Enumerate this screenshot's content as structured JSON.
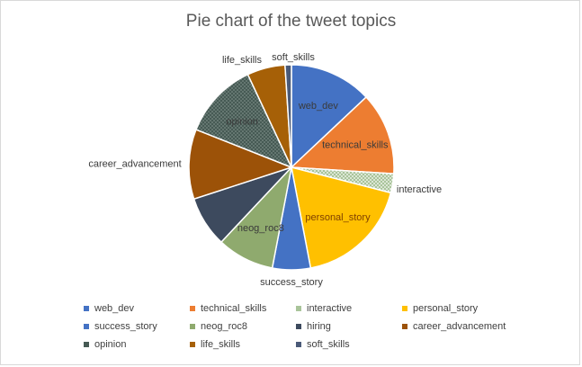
{
  "chart_data": {
    "type": "pie",
    "title": "Pie chart of the tweet topics",
    "slices": [
      {
        "label": "web_dev",
        "value": 13,
        "color": "#4472c4",
        "show_label": true,
        "label_color": "#3a3a3a"
      },
      {
        "label": "technical_skills",
        "value": 13,
        "color": "#ed7d31",
        "show_label": true,
        "label_color": "#3a3a3a"
      },
      {
        "label": "interactive",
        "value": 3,
        "color": "#a9c49a",
        "pattern": "dots",
        "show_label": true,
        "label_color": "#3a3a3a"
      },
      {
        "label": "personal_story",
        "value": 18,
        "color": "#ffc000",
        "show_label": true,
        "label_color": "#7f3f00"
      },
      {
        "label": "success_story",
        "value": 6,
        "color": "#4472c4",
        "show_label": true,
        "label_color": "#3a3a3a"
      },
      {
        "label": "neog_roc8",
        "value": 9,
        "color": "#8faa6e",
        "show_label": true,
        "label_color": "#3a3a3a"
      },
      {
        "label": "hiring",
        "value": 8,
        "color": "#3d4a5e",
        "show_label": false,
        "label_color": "#3a3a3a"
      },
      {
        "label": "career_advancement",
        "value": 11,
        "color": "#9c5208",
        "show_label": true,
        "label_color": "#3a3a3a"
      },
      {
        "label": "opinion",
        "value": 12,
        "color": "#465a54",
        "pattern": "dots",
        "show_label": true,
        "label_color": "#3a3a3a"
      },
      {
        "label": "life_skills",
        "value": 6,
        "color": "#a66007",
        "show_label": true,
        "label_color": "#3a3a3a"
      },
      {
        "label": "soft_skills",
        "value": 1,
        "color": "#4a5a78",
        "show_label": true,
        "label_color": "#3a3a3a"
      }
    ],
    "legend_position": "bottom"
  },
  "legend": [
    {
      "label": "web_dev",
      "color": "#4472c4"
    },
    {
      "label": "technical_skills",
      "color": "#ed7d31"
    },
    {
      "label": "interactive",
      "color": "#a9c49a"
    },
    {
      "label": "personal_story",
      "color": "#ffc000"
    },
    {
      "label": "success_story",
      "color": "#4472c4"
    },
    {
      "label": "neog_roc8",
      "color": "#8faa6e"
    },
    {
      "label": "hiring",
      "color": "#3d4a5e"
    },
    {
      "label": "career_advancement",
      "color": "#9c5208"
    },
    {
      "label": "opinion",
      "color": "#465a54"
    },
    {
      "label": "life_skills",
      "color": "#a66007"
    },
    {
      "label": "soft_skills",
      "color": "#4a5a78"
    }
  ]
}
